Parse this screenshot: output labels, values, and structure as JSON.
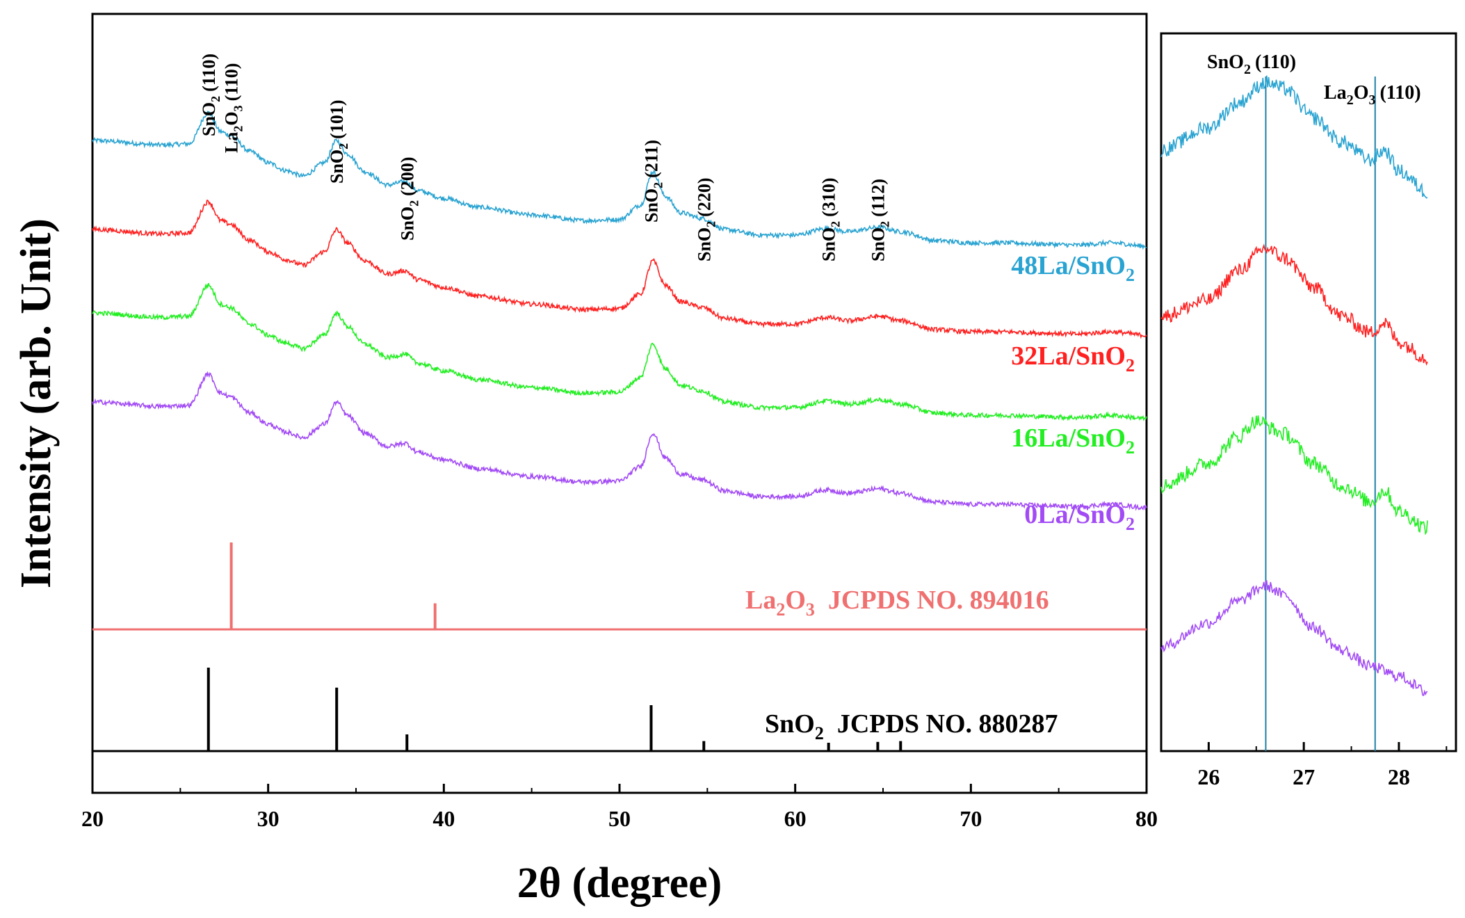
{
  "chart_data": [
    {
      "type": "line",
      "title": "",
      "xlabel": "2θ (degree)",
      "ylabel": "Intensity (arb. Unit)",
      "xlim": [
        20,
        80
      ],
      "x_ticks": [
        20,
        30,
        40,
        50,
        60,
        70,
        80
      ],
      "y_ticks": [],
      "grid": false,
      "series": [
        {
          "name": "48La/SnO2",
          "label_main": "48La/SnO",
          "label_sub": "2",
          "color": "#29a3d1",
          "offset": 2.55,
          "noise": 0.04,
          "points": [
            [
              20,
              1.0
            ],
            [
              24,
              0.96
            ],
            [
              25.5,
              0.97
            ],
            [
              26.6,
              1.25
            ],
            [
              27.3,
              1.08
            ],
            [
              27.8,
              1.05
            ],
            [
              29,
              0.9
            ],
            [
              30,
              0.8
            ],
            [
              31,
              0.73
            ],
            [
              32,
              0.68
            ],
            [
              33.2,
              0.8
            ],
            [
              33.9,
              1.0
            ],
            [
              34.5,
              0.88
            ],
            [
              35.5,
              0.72
            ],
            [
              36.8,
              0.6
            ],
            [
              37.8,
              0.63
            ],
            [
              38.5,
              0.55
            ],
            [
              40,
              0.48
            ],
            [
              42,
              0.4
            ],
            [
              45,
              0.33
            ],
            [
              48,
              0.28
            ],
            [
              50,
              0.29
            ],
            [
              51.2,
              0.42
            ],
            [
              51.9,
              0.72
            ],
            [
              52.6,
              0.5
            ],
            [
              53.5,
              0.35
            ],
            [
              54.7,
              0.3
            ],
            [
              56,
              0.2
            ],
            [
              58,
              0.15
            ],
            [
              60,
              0.15
            ],
            [
              61.8,
              0.21
            ],
            [
              63,
              0.18
            ],
            [
              64.8,
              0.22
            ],
            [
              66,
              0.18
            ],
            [
              68,
              0.1
            ],
            [
              70,
              0.08
            ],
            [
              72,
              0.08
            ],
            [
              74,
              0.07
            ],
            [
              76,
              0.06
            ],
            [
              78,
              0.08
            ],
            [
              80,
              0.05
            ]
          ]
        },
        {
          "name": "32La/SnO2",
          "label_main": "32La/SnO",
          "label_sub": "2",
          "color": "#ff2020",
          "offset": 1.75,
          "noise": 0.04,
          "points": [
            [
              20,
              1.0
            ],
            [
              24,
              0.96
            ],
            [
              25.5,
              0.97
            ],
            [
              26.6,
              1.25
            ],
            [
              27.3,
              1.08
            ],
            [
              27.8,
              1.05
            ],
            [
              29,
              0.9
            ],
            [
              30,
              0.8
            ],
            [
              31,
              0.73
            ],
            [
              32,
              0.68
            ],
            [
              33.2,
              0.8
            ],
            [
              33.9,
              1.0
            ],
            [
              34.5,
              0.88
            ],
            [
              35.5,
              0.72
            ],
            [
              36.8,
              0.6
            ],
            [
              37.8,
              0.63
            ],
            [
              38.5,
              0.55
            ],
            [
              40,
              0.48
            ],
            [
              42,
              0.4
            ],
            [
              45,
              0.33
            ],
            [
              48,
              0.28
            ],
            [
              50,
              0.29
            ],
            [
              51.2,
              0.42
            ],
            [
              51.9,
              0.72
            ],
            [
              52.6,
              0.5
            ],
            [
              53.5,
              0.35
            ],
            [
              54.7,
              0.3
            ],
            [
              56,
              0.2
            ],
            [
              58,
              0.15
            ],
            [
              60,
              0.15
            ],
            [
              61.8,
              0.21
            ],
            [
              63,
              0.18
            ],
            [
              64.8,
              0.22
            ],
            [
              66,
              0.18
            ],
            [
              68,
              0.1
            ],
            [
              70,
              0.08
            ],
            [
              72,
              0.08
            ],
            [
              74,
              0.07
            ],
            [
              76,
              0.06
            ],
            [
              78,
              0.08
            ],
            [
              80,
              0.05
            ]
          ]
        },
        {
          "name": "16La/SnO2",
          "label_main": "16La/SnO",
          "label_sub": "2",
          "color": "#22ee22",
          "offset": 1.0,
          "noise": 0.04,
          "points": [
            [
              20,
              1.0
            ],
            [
              24,
              0.96
            ],
            [
              25.5,
              0.97
            ],
            [
              26.6,
              1.25
            ],
            [
              27.3,
              1.08
            ],
            [
              27.8,
              1.05
            ],
            [
              29,
              0.9
            ],
            [
              30,
              0.8
            ],
            [
              31,
              0.73
            ],
            [
              32,
              0.68
            ],
            [
              33.2,
              0.8
            ],
            [
              33.9,
              1.0
            ],
            [
              34.5,
              0.88
            ],
            [
              35.5,
              0.72
            ],
            [
              36.8,
              0.6
            ],
            [
              37.8,
              0.63
            ],
            [
              38.5,
              0.55
            ],
            [
              40,
              0.48
            ],
            [
              42,
              0.4
            ],
            [
              45,
              0.33
            ],
            [
              48,
              0.28
            ],
            [
              50,
              0.29
            ],
            [
              51.2,
              0.42
            ],
            [
              51.9,
              0.72
            ],
            [
              52.6,
              0.5
            ],
            [
              53.5,
              0.35
            ],
            [
              54.7,
              0.3
            ],
            [
              56,
              0.2
            ],
            [
              58,
              0.15
            ],
            [
              60,
              0.15
            ],
            [
              61.8,
              0.21
            ],
            [
              63,
              0.18
            ],
            [
              64.8,
              0.22
            ],
            [
              66,
              0.18
            ],
            [
              68,
              0.1
            ],
            [
              70,
              0.08
            ],
            [
              72,
              0.08
            ],
            [
              74,
              0.07
            ],
            [
              76,
              0.06
            ],
            [
              78,
              0.08
            ],
            [
              80,
              0.05
            ]
          ]
        },
        {
          "name": "0La/SnO2",
          "label_main": "0La/SnO",
          "label_sub": "2",
          "color": "#a24bf5",
          "offset": 0.2,
          "noise": 0.04,
          "points": [
            [
              20,
              1.0
            ],
            [
              24,
              0.96
            ],
            [
              25.5,
              0.97
            ],
            [
              26.6,
              1.25
            ],
            [
              27.3,
              1.08
            ],
            [
              27.8,
              1.05
            ],
            [
              29,
              0.9
            ],
            [
              30,
              0.8
            ],
            [
              31,
              0.73
            ],
            [
              32,
              0.68
            ],
            [
              33.2,
              0.8
            ],
            [
              33.9,
              1.0
            ],
            [
              34.5,
              0.88
            ],
            [
              35.5,
              0.72
            ],
            [
              36.8,
              0.6
            ],
            [
              37.8,
              0.63
            ],
            [
              38.5,
              0.55
            ],
            [
              40,
              0.48
            ],
            [
              42,
              0.4
            ],
            [
              45,
              0.33
            ],
            [
              48,
              0.28
            ],
            [
              50,
              0.29
            ],
            [
              51.2,
              0.42
            ],
            [
              51.9,
              0.72
            ],
            [
              52.6,
              0.5
            ],
            [
              53.5,
              0.35
            ],
            [
              54.7,
              0.3
            ],
            [
              56,
              0.2
            ],
            [
              58,
              0.15
            ],
            [
              60,
              0.15
            ],
            [
              61.8,
              0.21
            ],
            [
              63,
              0.18
            ],
            [
              64.8,
              0.22
            ],
            [
              66,
              0.18
            ],
            [
              68,
              0.1
            ],
            [
              70,
              0.08
            ],
            [
              72,
              0.08
            ],
            [
              74,
              0.07
            ],
            [
              76,
              0.06
            ],
            [
              78,
              0.08
            ],
            [
              80,
              0.05
            ]
          ]
        }
      ],
      "reference_patterns": [
        {
          "name": "La2O3 JCPDS NO. 894016",
          "label_main": "La",
          "label_sub": "2",
          "label_rest": "O",
          "label_sub2": "3",
          "label_tail": "  JCPDS NO. 894016",
          "color": "#f07070",
          "peaks": [
            {
              "x": 27.9,
              "intensity": 100
            },
            {
              "x": 39.5,
              "intensity": 30
            }
          ]
        },
        {
          "name": "SnO2 JCPDS NO. 880287",
          "label_main": "SnO",
          "label_sub": "2",
          "label_rest": "",
          "label_sub2": "",
          "label_tail": "  JCPDS NO. 880287",
          "color": "#000000",
          "peaks": [
            {
              "x": 26.6,
              "intensity": 100
            },
            {
              "x": 33.9,
              "intensity": 76
            },
            {
              "x": 37.9,
              "intensity": 20
            },
            {
              "x": 51.8,
              "intensity": 55
            },
            {
              "x": 54.8,
              "intensity": 12
            },
            {
              "x": 61.9,
              "intensity": 10
            },
            {
              "x": 64.7,
              "intensity": 11
            },
            {
              "x": 66.0,
              "intensity": 12
            }
          ]
        }
      ],
      "peak_annotations": [
        {
          "compound": "SnO",
          "sub": "2",
          "hkl": "(110)",
          "x": 26.6
        },
        {
          "compound": "La",
          "sub": "2",
          "compound2": "O",
          "sub2": "3",
          "hkl": "(110)",
          "x": 27.9
        },
        {
          "compound": "SnO",
          "sub": "2",
          "hkl": "(101)",
          "x": 33.9
        },
        {
          "compound": "SnO",
          "sub": "2",
          "hkl": "(200)",
          "x": 37.9
        },
        {
          "compound": "SnO",
          "sub": "2",
          "hkl": "(211)",
          "x": 51.8
        },
        {
          "compound": "SnO",
          "sub": "2",
          "hkl": "(220)",
          "x": 54.8
        },
        {
          "compound": "SnO",
          "sub": "2",
          "hkl": "(310)",
          "x": 61.9
        },
        {
          "compound": "SnO",
          "sub": "2",
          "hkl": "(112)",
          "x": 64.7
        }
      ]
    },
    {
      "type": "line",
      "title": "",
      "xlabel": "",
      "ylabel": "",
      "xlim": [
        25.5,
        28.6
      ],
      "x_ticks": [
        26,
        27,
        28
      ],
      "grid": false,
      "reference_lines": [
        {
          "x": 26.6,
          "label": "SnO2 (110)",
          "compound": "SnO",
          "sub": "2",
          "hkl": "(110)",
          "color": "#1f7fa6"
        },
        {
          "x": 27.75,
          "label": "La2O3 (110)",
          "compound": "La",
          "sub": "2",
          "compound2": "O",
          "sub2": "3",
          "hkl": "(110)",
          "color": "#1f7fa6"
        }
      ],
      "series": [
        {
          "name": "48La/SnO2",
          "color": "#29a3d1",
          "offset": 3.1,
          "noise": 0.09,
          "points": [
            [
              25.5,
              0.28
            ],
            [
              26.0,
              0.42
            ],
            [
              26.3,
              0.57
            ],
            [
              26.6,
              0.7
            ],
            [
              26.8,
              0.66
            ],
            [
              27.1,
              0.48
            ],
            [
              27.4,
              0.33
            ],
            [
              27.7,
              0.22
            ],
            [
              27.85,
              0.28
            ],
            [
              28.0,
              0.15
            ],
            [
              28.3,
              0.02
            ]
          ]
        },
        {
          "name": "32La/SnO2",
          "color": "#ff2020",
          "offset": 2.05,
          "noise": 0.09,
          "points": [
            [
              25.5,
              0.3
            ],
            [
              26.0,
              0.4
            ],
            [
              26.3,
              0.58
            ],
            [
              26.6,
              0.72
            ],
            [
              26.8,
              0.66
            ],
            [
              27.1,
              0.48
            ],
            [
              27.4,
              0.3
            ],
            [
              27.7,
              0.2
            ],
            [
              27.85,
              0.26
            ],
            [
              28.0,
              0.14
            ],
            [
              28.3,
              0.04
            ]
          ]
        },
        {
          "name": "16La/SnO2",
          "color": "#22ee22",
          "offset": 1.02,
          "noise": 0.09,
          "points": [
            [
              25.5,
              0.28
            ],
            [
              26.0,
              0.42
            ],
            [
              26.3,
              0.58
            ],
            [
              26.5,
              0.68
            ],
            [
              26.8,
              0.6
            ],
            [
              27.1,
              0.42
            ],
            [
              27.4,
              0.28
            ],
            [
              27.7,
              0.18
            ],
            [
              27.85,
              0.25
            ],
            [
              28.0,
              0.12
            ],
            [
              28.3,
              0.02
            ]
          ]
        },
        {
          "name": "0La/SnO2",
          "color": "#a24bf5",
          "offset": 0.0,
          "noise": 0.07,
          "points": [
            [
              25.5,
              0.3
            ],
            [
              26.0,
              0.45
            ],
            [
              26.3,
              0.58
            ],
            [
              26.6,
              0.68
            ],
            [
              26.8,
              0.62
            ],
            [
              27.1,
              0.42
            ],
            [
              27.4,
              0.28
            ],
            [
              27.7,
              0.18
            ],
            [
              28.0,
              0.12
            ],
            [
              28.3,
              0.02
            ]
          ]
        }
      ]
    }
  ]
}
